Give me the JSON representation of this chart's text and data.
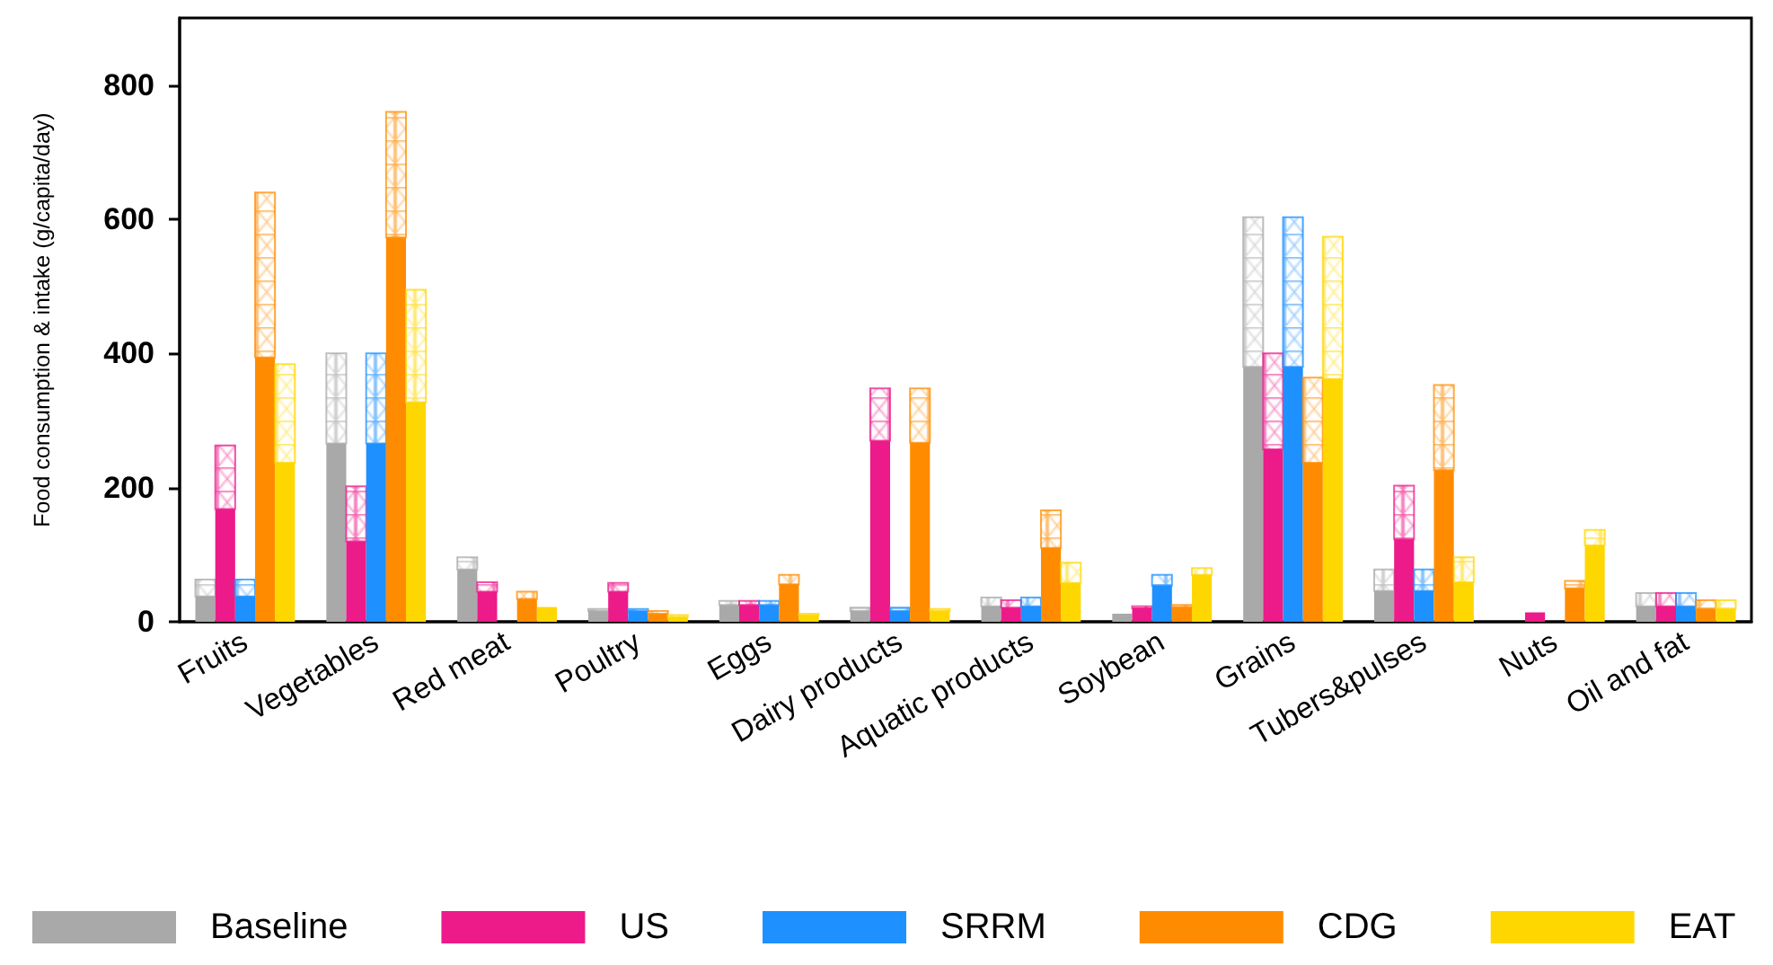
{
  "chart_data": {
    "type": "bar",
    "ylabel": "Food consumption & intake (g/capita/day)",
    "categories": [
      "Fruits",
      "Vegetables",
      "Red meat",
      "Poultry",
      "Eggs",
      "Dairy products",
      "Aquatic products",
      "Soybean",
      "Grains",
      "Tubers&pulses",
      "Nuts",
      "Oil and fat"
    ],
    "series": [
      {
        "name": "Baseline",
        "color": "#a9a9a9",
        "values": [
          38,
          266,
          78,
          16,
          25,
          16,
          23,
          12,
          380,
          46,
          null,
          23
        ]
      },
      {
        "color": "#a9a9a9",
        "values": [
          25,
          134,
          18,
          3,
          6,
          5,
          13,
          null,
          223,
          32,
          null,
          20
        ],
        "base": [
          38,
          266,
          78,
          16,
          25,
          16,
          23,
          null,
          380,
          46,
          null,
          23
        ]
      },
      {
        "name": "US",
        "color": "#ed1a8a",
        "values": [
          168,
          120,
          45,
          45,
          25,
          270,
          21,
          20,
          257,
          123,
          14,
          23
        ]
      },
      {
        "color": "#ed1a8a",
        "values": [
          95,
          82,
          14,
          13,
          6,
          78,
          11,
          3,
          143,
          80,
          null,
          20
        ],
        "base": [
          168,
          120,
          45,
          45,
          25,
          270,
          21,
          20,
          257,
          123,
          null,
          23
        ]
      },
      {
        "name": "SRRM",
        "color": "#1e90ff",
        "values": [
          38,
          266,
          null,
          16,
          25,
          16,
          23,
          54,
          380,
          46,
          null,
          23
        ]
      },
      {
        "color": "#1e90ff",
        "values": [
          25,
          134,
          null,
          3,
          6,
          5,
          13,
          16,
          223,
          32,
          null,
          20
        ],
        "base": [
          38,
          266,
          null,
          16,
          25,
          16,
          23,
          54,
          380,
          46,
          null,
          23
        ]
      },
      {
        "name": "CDG",
        "color": "#ff8c00",
        "values": [
          394,
          573,
          34,
          12,
          56,
          267,
          110,
          22,
          237,
          226,
          50,
          19
        ]
      },
      {
        "color": "#ff8c00",
        "values": [
          246,
          187,
          11,
          4,
          14,
          81,
          56,
          3,
          127,
          127,
          11,
          13
        ],
        "base": [
          394,
          573,
          34,
          12,
          56,
          267,
          110,
          22,
          237,
          226,
          50,
          19
        ]
      },
      {
        "name": "EAT",
        "color": "#ffd700",
        "values": [
          237,
          327,
          22,
          7,
          10,
          16,
          58,
          70,
          362,
          59,
          114,
          19
        ]
      },
      {
        "color": "#ffd700",
        "values": [
          147,
          168,
          null,
          3,
          2,
          3,
          30,
          10,
          212,
          37,
          23,
          13
        ],
        "base": [
          237,
          327,
          null,
          7,
          10,
          16,
          58,
          70,
          362,
          59,
          114,
          19
        ]
      }
    ],
    "ylim": [
      0,
      900
    ],
    "yticks": [
      0,
      200,
      400,
      600,
      800
    ],
    "legend": "bottom"
  }
}
